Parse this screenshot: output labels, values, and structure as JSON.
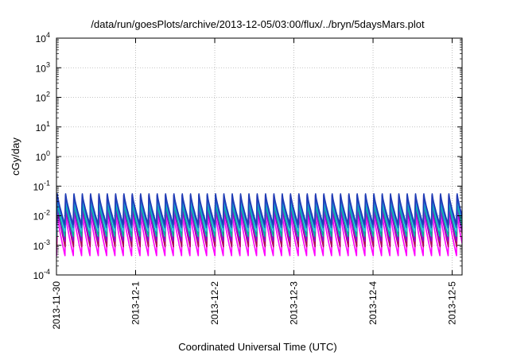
{
  "chart_data": {
    "type": "line",
    "title": "/data/run/goesPlots/archive/2013-12-05/03:00/flux/../bryn/5daysMars.plot",
    "xlabel": "Coordinated Universal Time (UTC)",
    "ylabel": "cGy/day",
    "yscale": "log",
    "ylim": [
      0.0001,
      10000
    ],
    "y_ticks": [
      {
        "base": "10",
        "exp": "-4",
        "value": 0.0001
      },
      {
        "base": "10",
        "exp": "-3",
        "value": 0.001
      },
      {
        "base": "10",
        "exp": "-2",
        "value": 0.01
      },
      {
        "base": "10",
        "exp": "-1",
        "value": 0.1
      },
      {
        "base": "10",
        "exp": "0",
        "value": 1
      },
      {
        "base": "10",
        "exp": "1",
        "value": 10
      },
      {
        "base": "10",
        "exp": "2",
        "value": 100
      },
      {
        "base": "10",
        "exp": "3",
        "value": 1000
      },
      {
        "base": "10",
        "exp": "4",
        "value": 10000
      }
    ],
    "xlim": [
      "2013-11-30",
      "2013-12-05 03:00"
    ],
    "x_ticks": [
      "2013-11-30",
      "2013-12-1",
      "2013-12-2",
      "2013-12-3",
      "2013-12-4",
      "2013-12-5"
    ],
    "grid": true,
    "pattern": {
      "shape": "sawtooth",
      "cycles_per_day": 9.5,
      "note": "All series repeat a sharp rise followed by decay roughly every 2.5 hours over the 5-day window."
    },
    "series": [
      {
        "color": "#e0009a",
        "peak": 0.05,
        "trough": 0.0011
      },
      {
        "color": "#ff00ff",
        "peak": 0.012,
        "trough": 0.00045
      },
      {
        "color": "#b30059",
        "peak": 0.025,
        "trough": 0.0009
      },
      {
        "color": "#9400d3",
        "peak": 0.02,
        "trough": 0.0014
      },
      {
        "color": "#00b3a0",
        "peak": 0.03,
        "trough": 0.002
      },
      {
        "color": "#20c0e0",
        "peak": 0.04,
        "trough": 0.003
      },
      {
        "color": "#2060d0",
        "peak": 0.05,
        "trough": 0.004
      },
      {
        "color": "#1e3cb4",
        "peak": 0.055,
        "trough": 0.005
      }
    ]
  }
}
